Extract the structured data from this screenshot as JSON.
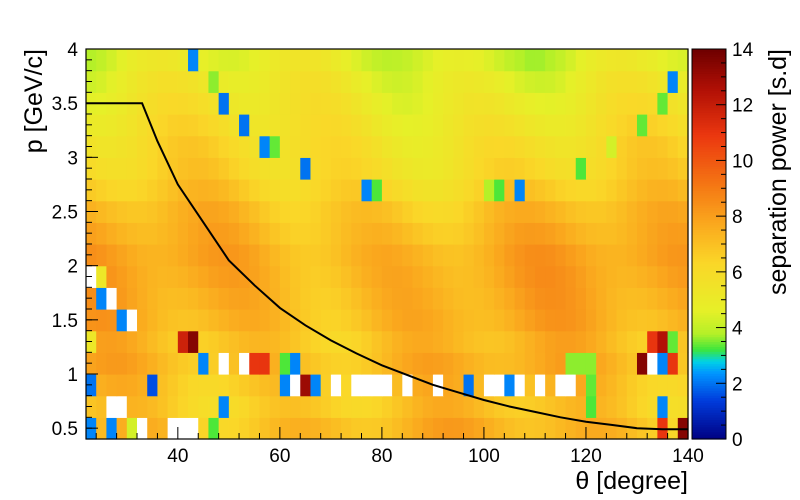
{
  "chart_data": {
    "type": "heatmap",
    "xlabel": "θ [degree]",
    "ylabel": "p [GeV/c]",
    "zlabel": "separation power [s.d]",
    "xlim": [
      22,
      140
    ],
    "ylim": [
      0.4,
      4.0
    ],
    "zlim": [
      0,
      14
    ],
    "x_ticks": [
      "40",
      "60",
      "80",
      "100",
      "120",
      "140"
    ],
    "y_ticks": [
      "0.5",
      "1",
      "1.5",
      "2",
      "2.5",
      "3",
      "3.5",
      "4"
    ],
    "z_ticks": [
      "0",
      "2",
      "4",
      "6",
      "8",
      "10",
      "12",
      "14"
    ],
    "x_tick_values": [
      40,
      60,
      80,
      100,
      120,
      140
    ],
    "y_tick_values": [
      0.5,
      1,
      1.5,
      2,
      2.5,
      3,
      3.5,
      4
    ],
    "z_tick_values": [
      0,
      2,
      4,
      6,
      8,
      10,
      12,
      14
    ],
    "grid": {
      "x_bins": 59,
      "y_bins": 18,
      "x_range": [
        22,
        140
      ],
      "y_range": [
        0.4,
        4.0
      ]
    },
    "row_values": [
      {
        "p": 0.5,
        "base": 7.2
      },
      {
        "p": 0.7,
        "base": 6.8
      },
      {
        "p": 0.9,
        "base": 7.0
      },
      {
        "p": 1.1,
        "base": 7.3
      },
      {
        "p": 1.3,
        "base": 7.1
      },
      {
        "p": 1.5,
        "base": 7.4
      },
      {
        "p": 1.7,
        "base": 7.5
      },
      {
        "p": 1.9,
        "base": 7.6
      },
      {
        "p": 2.1,
        "base": 7.6
      },
      {
        "p": 2.3,
        "base": 7.3
      },
      {
        "p": 2.5,
        "base": 7.0
      },
      {
        "p": 2.7,
        "base": 6.5
      },
      {
        "p": 2.9,
        "base": 6.1
      },
      {
        "p": 3.1,
        "base": 5.9
      },
      {
        "p": 3.3,
        "base": 5.6
      },
      {
        "p": 3.5,
        "base": 5.3
      },
      {
        "p": 3.7,
        "base": 5.0
      },
      {
        "p": 3.9,
        "base": 4.6
      }
    ],
    "special_cells": [
      {
        "theta": 43,
        "p": 3.9,
        "value": 2.2
      },
      {
        "theta": 47,
        "p": 3.7,
        "value": 3.6
      },
      {
        "theta": 49,
        "p": 3.5,
        "value": 2.0
      },
      {
        "theta": 53,
        "p": 3.3,
        "value": 2.0
      },
      {
        "theta": 57,
        "p": 3.1,
        "value": 2.2
      },
      {
        "theta": 59,
        "p": 3.1,
        "value": 3.4
      },
      {
        "theta": 65,
        "p": 2.9,
        "value": 2.0
      },
      {
        "theta": 77,
        "p": 2.7,
        "value": 2.2
      },
      {
        "theta": 79,
        "p": 2.7,
        "value": 3.3
      },
      {
        "theta": 101,
        "p": 2.7,
        "value": 3.8
      },
      {
        "theta": 103,
        "p": 2.7,
        "value": 3.3
      },
      {
        "theta": 107,
        "p": 2.7,
        "value": 2.2
      },
      {
        "theta": 119,
        "p": 2.9,
        "value": 3.3
      },
      {
        "theta": 125,
        "p": 3.1,
        "value": 4.3
      },
      {
        "theta": 131,
        "p": 3.3,
        "value": 3.4
      },
      {
        "theta": 135,
        "p": 3.5,
        "value": 3.4
      },
      {
        "theta": 137,
        "p": 3.7,
        "value": 2.2
      },
      {
        "theta": 23,
        "p": 1.9,
        "value": -1
      },
      {
        "theta": 25,
        "p": 1.9,
        "value": 5.2
      },
      {
        "theta": 25,
        "p": 1.7,
        "value": 2.2
      },
      {
        "theta": 27,
        "p": 1.7,
        "value": -1
      },
      {
        "theta": 23,
        "p": 1.3,
        "value": 5.2
      },
      {
        "theta": 29,
        "p": 1.5,
        "value": 2.2
      },
      {
        "theta": 31,
        "p": 1.5,
        "value": -1
      },
      {
        "theta": 41,
        "p": 1.3,
        "value": 11.8
      },
      {
        "theta": 43,
        "p": 1.3,
        "value": 13.5
      },
      {
        "theta": 45,
        "p": 1.1,
        "value": 2.2
      },
      {
        "theta": 49,
        "p": 1.1,
        "value": -1
      },
      {
        "theta": 53,
        "p": 1.1,
        "value": -1
      },
      {
        "theta": 55,
        "p": 1.1,
        "value": 11.0
      },
      {
        "theta": 57,
        "p": 1.1,
        "value": 11.0
      },
      {
        "theta": 61,
        "p": 1.1,
        "value": 3.3
      },
      {
        "theta": 63,
        "p": 1.1,
        "value": 2.2
      },
      {
        "theta": 23,
        "p": 0.9,
        "value": 2.0
      },
      {
        "theta": 35,
        "p": 0.9,
        "value": 1.6
      },
      {
        "theta": 61,
        "p": 0.9,
        "value": 2.2
      },
      {
        "theta": 63,
        "p": 0.9,
        "value": -1
      },
      {
        "theta": 65,
        "p": 0.9,
        "value": 13.0
      },
      {
        "theta": 67,
        "p": 0.9,
        "value": 2.2
      },
      {
        "theta": 71,
        "p": 0.9,
        "value": -1
      },
      {
        "theta": 75,
        "p": 0.9,
        "value": -1
      },
      {
        "theta": 77,
        "p": 0.9,
        "value": -1
      },
      {
        "theta": 79,
        "p": 0.9,
        "value": -1
      },
      {
        "theta": 81,
        "p": 0.9,
        "value": -1
      },
      {
        "theta": 85,
        "p": 0.9,
        "value": -1
      },
      {
        "theta": 91,
        "p": 0.9,
        "value": -1
      },
      {
        "theta": 97,
        "p": 0.9,
        "value": 2.0
      },
      {
        "theta": 101,
        "p": 0.9,
        "value": -1
      },
      {
        "theta": 103,
        "p": 0.9,
        "value": -1
      },
      {
        "theta": 105,
        "p": 0.9,
        "value": 2.2
      },
      {
        "theta": 107,
        "p": 0.9,
        "value": -1
      },
      {
        "theta": 111,
        "p": 0.9,
        "value": -1
      },
      {
        "theta": 115,
        "p": 0.9,
        "value": -1
      },
      {
        "theta": 117,
        "p": 0.9,
        "value": -1
      },
      {
        "theta": 121,
        "p": 0.9,
        "value": 3.4
      },
      {
        "theta": 117,
        "p": 1.1,
        "value": 3.6
      },
      {
        "theta": 119,
        "p": 1.1,
        "value": 3.6
      },
      {
        "theta": 121,
        "p": 1.1,
        "value": 3.6
      },
      {
        "theta": 131,
        "p": 1.1,
        "value": 13.5
      },
      {
        "theta": 133,
        "p": 1.1,
        "value": -1
      },
      {
        "theta": 135,
        "p": 1.1,
        "value": 2.2
      },
      {
        "theta": 137,
        "p": 1.1,
        "value": 11.0
      },
      {
        "theta": 137,
        "p": 1.3,
        "value": 3.4
      },
      {
        "theta": 133,
        "p": 1.3,
        "value": 11.0
      },
      {
        "theta": 135,
        "p": 1.3,
        "value": 12.5
      },
      {
        "theta": 23,
        "p": 0.5,
        "value": 2.2
      },
      {
        "theta": 27,
        "p": 0.7,
        "value": -1
      },
      {
        "theta": 29,
        "p": 0.7,
        "value": -1
      },
      {
        "theta": 27,
        "p": 0.5,
        "value": 2.2
      },
      {
        "theta": 31,
        "p": 0.5,
        "value": 4.3
      },
      {
        "theta": 33,
        "p": 0.5,
        "value": -1
      },
      {
        "theta": 39,
        "p": 0.5,
        "value": -1
      },
      {
        "theta": 41,
        "p": 0.5,
        "value": -1
      },
      {
        "theta": 43,
        "p": 0.5,
        "value": -1
      },
      {
        "theta": 47,
        "p": 0.5,
        "value": 3.3
      },
      {
        "theta": 49,
        "p": 0.7,
        "value": 2.2
      },
      {
        "theta": 135,
        "p": 0.7,
        "value": 2.2
      },
      {
        "theta": 121,
        "p": 0.7,
        "value": 3.3
      },
      {
        "theta": 135,
        "p": 0.5,
        "value": 11.0
      },
      {
        "theta": 139,
        "p": 0.5,
        "value": 13.5
      }
    ],
    "series": [
      {
        "type": "line",
        "x": [
          22,
          33,
          36,
          40,
          45,
          50,
          55,
          60,
          65,
          70,
          75,
          80,
          85,
          90,
          95,
          100,
          105,
          110,
          115,
          120,
          125,
          130,
          135,
          140
        ],
        "y": [
          3.5,
          3.5,
          3.15,
          2.75,
          2.4,
          2.05,
          1.82,
          1.61,
          1.45,
          1.31,
          1.19,
          1.08,
          0.99,
          0.9,
          0.83,
          0.76,
          0.7,
          0.65,
          0.6,
          0.56,
          0.53,
          0.5,
          0.49,
          0.49
        ]
      }
    ]
  }
}
